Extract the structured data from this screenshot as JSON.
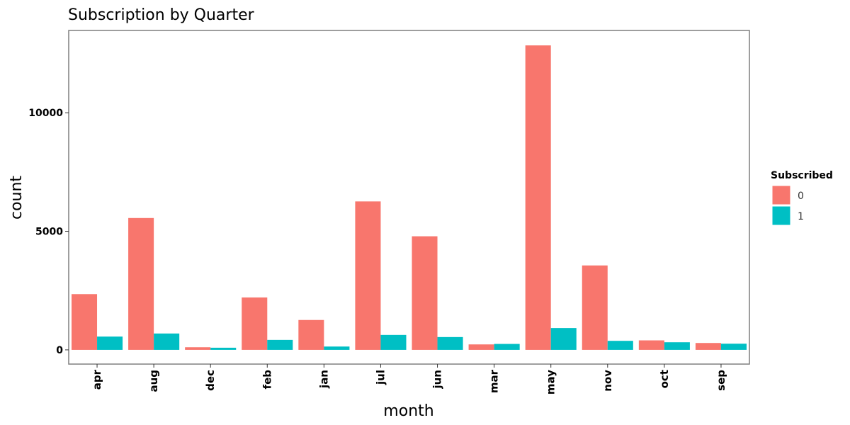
{
  "chart_data": {
    "type": "bar",
    "title": "Subscription by Quarter",
    "xlabel": "month",
    "ylabel": "count",
    "categories": [
      "apr",
      "aug",
      "dec",
      "feb",
      "jan",
      "jul",
      "jun",
      "mar",
      "may",
      "nov",
      "oct",
      "sep"
    ],
    "series": [
      {
        "name": "0",
        "color": "#F8766D",
        "values": [
          2350,
          5560,
          110,
          2210,
          1260,
          6260,
          4790,
          230,
          12840,
          3560,
          400,
          290
        ]
      },
      {
        "name": "1",
        "color": "#00BFC4",
        "values": [
          560,
          690,
          90,
          420,
          140,
          630,
          540,
          250,
          920,
          380,
          320,
          260
        ]
      }
    ],
    "ylim": [
      -600,
      13470
    ],
    "yticks": [
      0,
      5000,
      10000
    ],
    "legend": {
      "title": "Subscribed",
      "position": "right"
    },
    "grid": false
  }
}
